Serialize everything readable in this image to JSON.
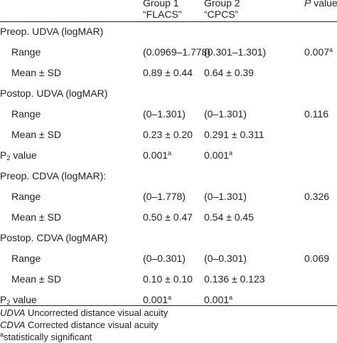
{
  "header": {
    "group1_line1": "Group 1",
    "group1_line2": "“FLACS”",
    "group2_line1": "Group 2",
    "group2_line2": "“CPCS”",
    "p_label": "P",
    "p_suffix": " value"
  },
  "rows": [
    {
      "type": "section",
      "label": "Preop. UDVA (logMAR)"
    },
    {
      "type": "data",
      "label": "Range",
      "g1": "(0.0969–1.778)",
      "g2": "(0.301–1.301)",
      "p": "0.007",
      "p_sup": "a"
    },
    {
      "type": "data",
      "label": "Mean ± SD",
      "g1": "0.89 ± 0.44",
      "g2": "0.64 ± 0.39",
      "p": ""
    },
    {
      "type": "section",
      "label": "Postop. UDVA (logMAR)"
    },
    {
      "type": "data",
      "label": "Range",
      "g1": "(0–1.301)",
      "g2": "(0–1.301)",
      "p": "0.116"
    },
    {
      "type": "data",
      "label": "Mean ± SD",
      "g1": "0.23 ± 0.20",
      "g2": "0.291 ± 0.311",
      "p": ""
    },
    {
      "type": "p2",
      "label": "P",
      "label_sub": "2",
      "label_rest": " value",
      "g1": "0.001",
      "g1_sup": "a",
      "g2": "0.001",
      "g2_sup": "a"
    },
    {
      "type": "section",
      "label": "Preop. CDVA (logMAR):"
    },
    {
      "type": "data",
      "label": "Range",
      "g1": "(0–1.778)",
      "g2": "(0–1.301)",
      "p": "0.326"
    },
    {
      "type": "data",
      "label": "Mean ± SD",
      "g1": "0.50 ± 0.47",
      "g2": "0.54 ± 0.45",
      "p": ""
    },
    {
      "type": "section",
      "label": "Postop. CDVA (logMAR)"
    },
    {
      "type": "data",
      "label": "Range",
      "g1": "(0–0.301)",
      "g2": "(0–0.301)",
      "p": "0.069"
    },
    {
      "type": "data",
      "label": "Mean ± SD",
      "g1": "0.10 ± 0.10",
      "g2": "0.136 ± 0.123",
      "p": ""
    },
    {
      "type": "p2",
      "label": "P",
      "label_sub": "2",
      "label_rest": " value",
      "g1": "0.001",
      "g1_sup": "a",
      "g2": "0.001",
      "g2_sup": "a"
    }
  ],
  "footnotes": [
    {
      "abbr": "UDVA",
      "text": " Uncorrected distance visual acuity"
    },
    {
      "abbr": "CDVA",
      "text": " Corrected distance visual acuity"
    },
    {
      "abbr": "a",
      "text": "statistically significant"
    }
  ],
  "colors": {
    "text": "#231f20",
    "rule": "#231f20",
    "background": "#ffffff"
  }
}
